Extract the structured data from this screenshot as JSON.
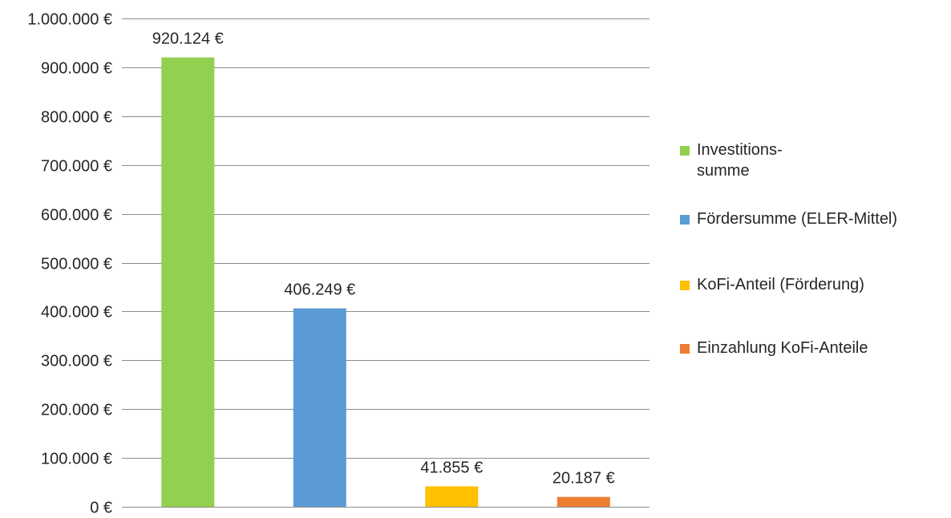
{
  "chart_data": {
    "type": "bar",
    "categories": [
      "Investitions-summe",
      "Fördersumme (ELER-Mittel)",
      "KoFi-Anteil (Förderung)",
      "Einzahlung KoFi-Anteile"
    ],
    "values": [
      920124,
      406249,
      41855,
      20187
    ],
    "data_labels": [
      "920.124 €",
      "406.249 €",
      "41.855 €",
      "20.187 €"
    ],
    "colors": [
      "#92d050",
      "#5b9bd5",
      "#ffc000",
      "#ed7d31"
    ],
    "ylim": [
      0,
      1000000
    ],
    "yticks": [
      0,
      100000,
      200000,
      300000,
      400000,
      500000,
      600000,
      700000,
      800000,
      900000,
      1000000
    ],
    "ytick_labels": [
      "0 €",
      "100.000 €",
      "200.000 €",
      "300.000 €",
      "400.000 €",
      "500.000 €",
      "600.000 €",
      "700.000 €",
      "800.000 €",
      "900.000 €",
      "1.000.000 €"
    ],
    "grid": true,
    "legend_position": "right",
    "legend": [
      {
        "label": "Investitions-summe",
        "color": "#92d050",
        "swatch_color_name": "green"
      },
      {
        "label": "Fördersumme (ELER-Mittel)",
        "color": "#5b9bd5",
        "swatch_color_name": "blue"
      },
      {
        "label": "KoFi-Anteil (Förderung)",
        "color": "#ffc000",
        "swatch_color_name": "yellow"
      },
      {
        "label": "Einzahlung KoFi-Anteile",
        "color": "#ed7d31",
        "swatch_color_name": "orange"
      }
    ],
    "gridline_color": "#8c8c8c"
  }
}
